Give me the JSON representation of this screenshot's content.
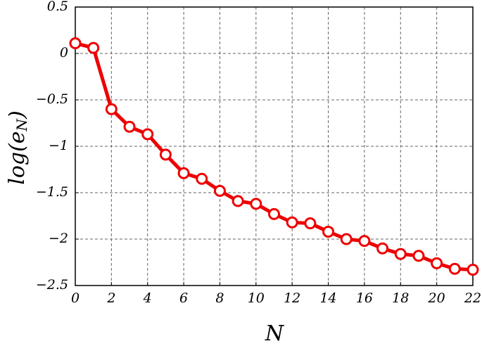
{
  "chart_data": {
    "type": "line",
    "x_label": "N",
    "y_label": [
      "log(e",
      "N",
      ")"
    ],
    "x": [
      0,
      1,
      2,
      3,
      4,
      5,
      6,
      7,
      8,
      9,
      10,
      11,
      12,
      13,
      14,
      15,
      16,
      17,
      18,
      19,
      20,
      21,
      22
    ],
    "series": [
      {
        "color": "#ee0000",
        "values": [
          0.11,
          0.06,
          -0.6,
          -0.79,
          -0.87,
          -1.09,
          -1.29,
          -1.35,
          -1.48,
          -1.59,
          -1.62,
          -1.73,
          -1.82,
          -1.83,
          -1.92,
          -2.0,
          -2.02,
          -2.1,
          -2.16,
          -2.18,
          -2.26,
          -2.32,
          -2.33
        ]
      }
    ],
    "xlim": [
      0,
      22
    ],
    "xticks": [
      0,
      2,
      4,
      6,
      8,
      10,
      12,
      14,
      16,
      18,
      20,
      22
    ],
    "ylim": [
      -2.5,
      0.5
    ],
    "yticks": [
      0.5,
      0,
      {
        "value": -0.5,
        "label": "−0.5"
      },
      {
        "value": -1,
        "label": "−1"
      },
      {
        "value": -1.5,
        "label": "−1.5"
      },
      {
        "value": -2,
        "label": "−2"
      },
      {
        "value": -2.5,
        "label": "−2.5"
      }
    ],
    "grid": true
  }
}
